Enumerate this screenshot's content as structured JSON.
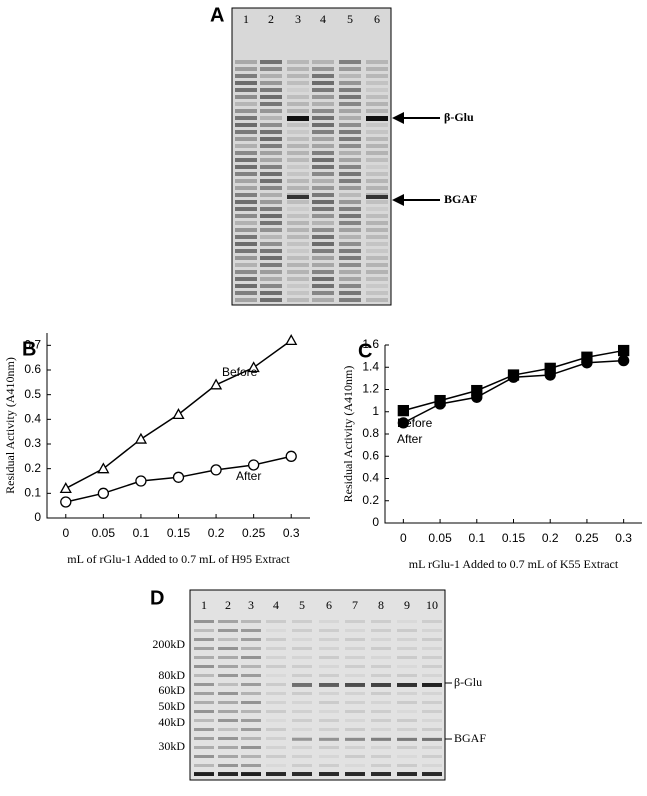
{
  "gels": [
    {
      "panel": "A",
      "lanes": [
        "1",
        "2",
        "3",
        "4",
        "5",
        "6"
      ],
      "bands": [
        "β-Glu",
        "BGAF"
      ]
    },
    {
      "panel": "D",
      "lanes": [
        "1",
        "2",
        "3",
        "4",
        "5",
        "6",
        "7",
        "8",
        "9",
        "10"
      ],
      "markers": [
        "200kD",
        "80kD",
        "60kD",
        "50kD",
        "40kD",
        "30kD"
      ],
      "bands": [
        "β-Glu",
        "BGAF"
      ]
    }
  ],
  "chart_data": [
    {
      "type": "line",
      "panel": "B",
      "x_label": "mL of rGlu-1 Added to 0.7 mL of H95 Extract",
      "y_label": "Residual Activity (A410nm)",
      "x": [
        0,
        0.05,
        0.1,
        0.15,
        0.2,
        0.25,
        0.3
      ],
      "series": [
        {
          "name": "Before",
          "color": "#000000",
          "marker": "triangle-open",
          "values": [
            0.12,
            0.2,
            0.32,
            0.42,
            0.54,
            0.61,
            0.72
          ]
        },
        {
          "name": "After",
          "color": "#000000",
          "marker": "circle-open",
          "values": [
            0.065,
            0.1,
            0.15,
            0.165,
            0.195,
            0.215,
            0.25
          ]
        }
      ],
      "xlim": [
        -0.025,
        0.325
      ],
      "xticks": [
        0,
        0.05,
        0.1,
        0.15,
        0.2,
        0.25,
        0.3
      ],
      "ylim": [
        0,
        0.75
      ],
      "yticks": [
        0,
        0.1,
        0.2,
        0.3,
        0.4,
        0.5,
        0.6,
        0.7
      ]
    },
    {
      "type": "line",
      "panel": "C",
      "x_label": "mL rGlu-1 Added to 0.7 mL of K55 Extract",
      "y_label": "Residual Activity (A410nm)",
      "x": [
        0,
        0.05,
        0.1,
        0.15,
        0.2,
        0.25,
        0.3
      ],
      "series": [
        {
          "name": "Before",
          "color": "#000000",
          "marker": "square",
          "values": [
            1.01,
            1.1,
            1.19,
            1.33,
            1.39,
            1.49,
            1.55
          ]
        },
        {
          "name": "After",
          "color": "#000000",
          "marker": "circle",
          "values": [
            0.9,
            1.07,
            1.13,
            1.31,
            1.33,
            1.44,
            1.46
          ]
        }
      ],
      "xlim": [
        -0.025,
        0.325
      ],
      "xticks": [
        0,
        0.05,
        0.1,
        0.15,
        0.2,
        0.25,
        0.3
      ],
      "ylim": [
        0,
        1.6
      ],
      "yticks": [
        0,
        0.2,
        0.4,
        0.6,
        0.8,
        1,
        1.2,
        1.4,
        1.6
      ]
    }
  ]
}
